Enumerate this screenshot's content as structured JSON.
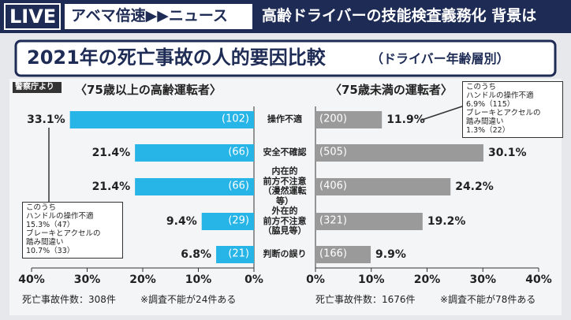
{
  "header": {
    "live": "LIVE",
    "program": "アベマ倍速▶▶ニュース",
    "headline": "高齢ドライバーの技能検査義務化 背景は"
  },
  "title": "2021年の死亡事故の人的要因比較",
  "title_note": "（ドライバー年齢層別）",
  "source": "警察庁より",
  "chart_data": {
    "type": "bar",
    "orientation": "horizontal",
    "categories": [
      "操作不適",
      "安全不確認",
      "内在的\n前方不注意\n（漫然運転等）",
      "外在的\n前方不注意\n（脇見等）",
      "判断の誤り"
    ],
    "xlim": [
      0,
      40
    ],
    "xticks": [
      {
        "value": 0,
        "label": "0%"
      },
      {
        "value": 10,
        "label": "10%"
      },
      {
        "value": 20,
        "label": "20%"
      },
      {
        "value": 30,
        "label": "30%"
      },
      {
        "value": 40,
        "label": "40%"
      }
    ],
    "series": [
      {
        "name": "〈75歳以上の高齢運転者〉",
        "side": "left",
        "color": "#27b4e6",
        "values": [
          33.1,
          21.4,
          21.4,
          9.4,
          6.8
        ],
        "value_labels": [
          "33.1%",
          "21.4%",
          "21.4%",
          "9.4%",
          "6.8%"
        ],
        "counts": [
          "(102)",
          "(66)",
          "(66)",
          "(29)",
          "(21)"
        ],
        "total": "死亡事故件数：308件",
        "footnote": "※調査不能が24件ある",
        "annotation": "このうち\nハンドルの操作不適\n15.3%（47）\nブレーキとアクセルの\n踏み間違い\n10.7%（33）"
      },
      {
        "name": "〈75歳未満の運転者〉",
        "side": "right",
        "color": "#9a9a9a",
        "values": [
          11.9,
          30.1,
          24.2,
          19.2,
          9.9
        ],
        "value_labels": [
          "11.9%",
          "30.1%",
          "24.2%",
          "19.2%",
          "9.9%"
        ],
        "counts": [
          "(200)",
          "(505)",
          "(406)",
          "(321)",
          "(166)"
        ],
        "total": "死亡事故件数：1676件",
        "footnote": "※調査不能が78件ある",
        "annotation": "このうち\nハンドルの操作不適\n6.9%（115）\nブレーキとアクセルの\n踏み間違い\n1.3%（22）"
      }
    ]
  }
}
